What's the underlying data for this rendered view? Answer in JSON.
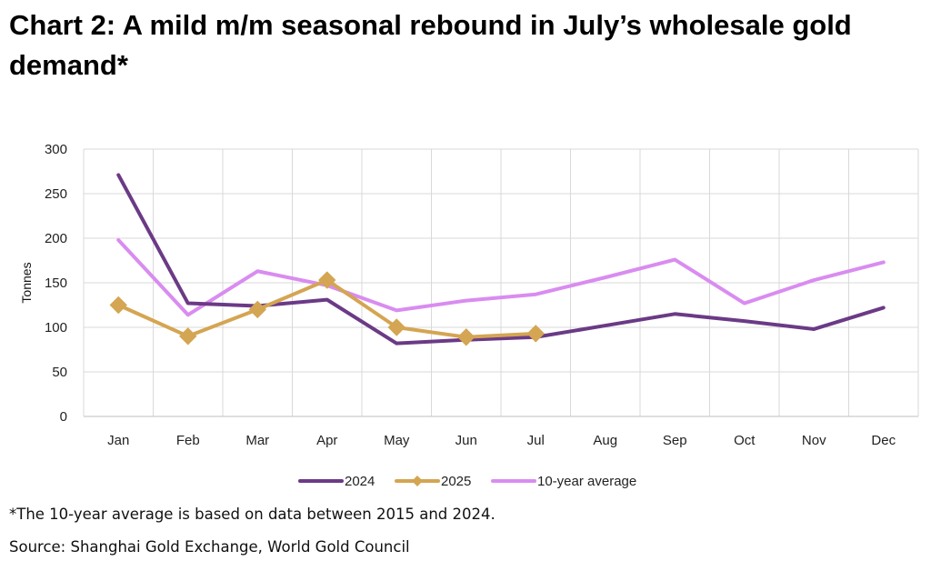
{
  "title": "Chart 2: A mild m/m seasonal rebound in July’s wholesale gold demand*",
  "footnote": "*The 10-year average is based on data between 2015 and 2024.",
  "source": "Source: Shanghai Gold Exchange, World Gold Council",
  "chart_data": {
    "type": "line",
    "ylabel": "Tonnes",
    "ylim": [
      0,
      300
    ],
    "yticks": [
      0,
      50,
      100,
      150,
      200,
      250,
      300
    ],
    "grid": true,
    "legend_position": "bottom-center",
    "categories": [
      "Jan",
      "Feb",
      "Mar",
      "Apr",
      "May",
      "Jun",
      "Jul",
      "Aug",
      "Sep",
      "Oct",
      "Nov",
      "Dec"
    ],
    "series": [
      {
        "name": "2024",
        "color": "#6b3a86",
        "marker": "none",
        "values": [
          271,
          127,
          124,
          131,
          82,
          86,
          89,
          102,
          115,
          107,
          98,
          122
        ]
      },
      {
        "name": "2025",
        "color": "#d4a552",
        "marker": "diamond",
        "values": [
          125,
          90,
          120,
          153,
          100,
          89,
          93,
          null,
          null,
          null,
          null,
          null
        ]
      },
      {
        "name": "10-year average",
        "color": "#d98cf0",
        "marker": "none",
        "values": [
          198,
          114,
          163,
          147,
          119,
          130,
          137,
          156,
          176,
          127,
          153,
          173
        ]
      }
    ]
  }
}
